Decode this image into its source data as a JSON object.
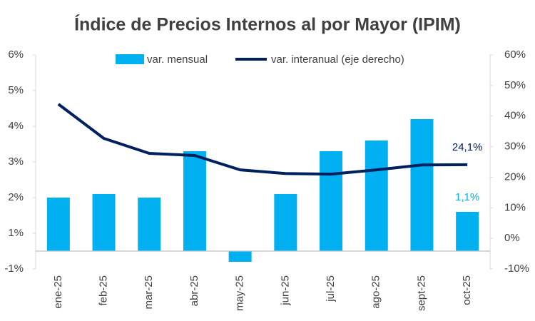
{
  "chart_data": {
    "type": "bar_line",
    "title": "Índice de Precios Internos al por Mayor (IPIM)",
    "categories": [
      "ene-25",
      "feb-25",
      "mar-25",
      "abr-25",
      "may-25",
      "jun-25",
      "jul-25",
      "ago-25",
      "sept-25",
      "oct-25"
    ],
    "series": [
      {
        "name": "var. mensual",
        "type": "bar",
        "color": "#00b0f0",
        "values": [
          1.5,
          1.6,
          1.5,
          2.8,
          -0.3,
          1.6,
          2.8,
          3.1,
          3.7,
          1.1
        ],
        "value_labels": [
          null,
          null,
          null,
          null,
          null,
          null,
          null,
          null,
          null,
          "1,1%"
        ]
      },
      {
        "name": "var. interanual (eje derecho)",
        "type": "line",
        "axis": "y2",
        "color": "#002060",
        "values": [
          43.9,
          32.7,
          27.8,
          27.1,
          22.4,
          21.2,
          21.0,
          22.4,
          24.0,
          24.1
        ],
        "value_labels": [
          null,
          null,
          null,
          null,
          null,
          null,
          null,
          null,
          null,
          "24,1%"
        ]
      }
    ],
    "ylim": [
      -0.5,
      5.5
    ],
    "yticks": [
      {
        "value": 5.5,
        "label": "6%"
      },
      {
        "value": 4.5,
        "label": "5%"
      },
      {
        "value": 3.5,
        "label": "4%"
      },
      {
        "value": 2.5,
        "label": "3%"
      },
      {
        "value": 1.5,
        "label": "2%"
      },
      {
        "value": 0.5,
        "label": "1%"
      },
      {
        "value": -0.5,
        "label": "-1%"
      }
    ],
    "y2lim": [
      -10,
      60
    ],
    "y2ticks": [
      {
        "value": 60,
        "label": "60%"
      },
      {
        "value": 50,
        "label": "50%"
      },
      {
        "value": 40,
        "label": "40%"
      },
      {
        "value": 30,
        "label": "30%"
      },
      {
        "value": 20,
        "label": "20%"
      },
      {
        "value": 10,
        "label": "10%"
      },
      {
        "value": 0,
        "label": "0%"
      },
      {
        "value": -10,
        "label": "-10%"
      }
    ],
    "legend": "top"
  }
}
